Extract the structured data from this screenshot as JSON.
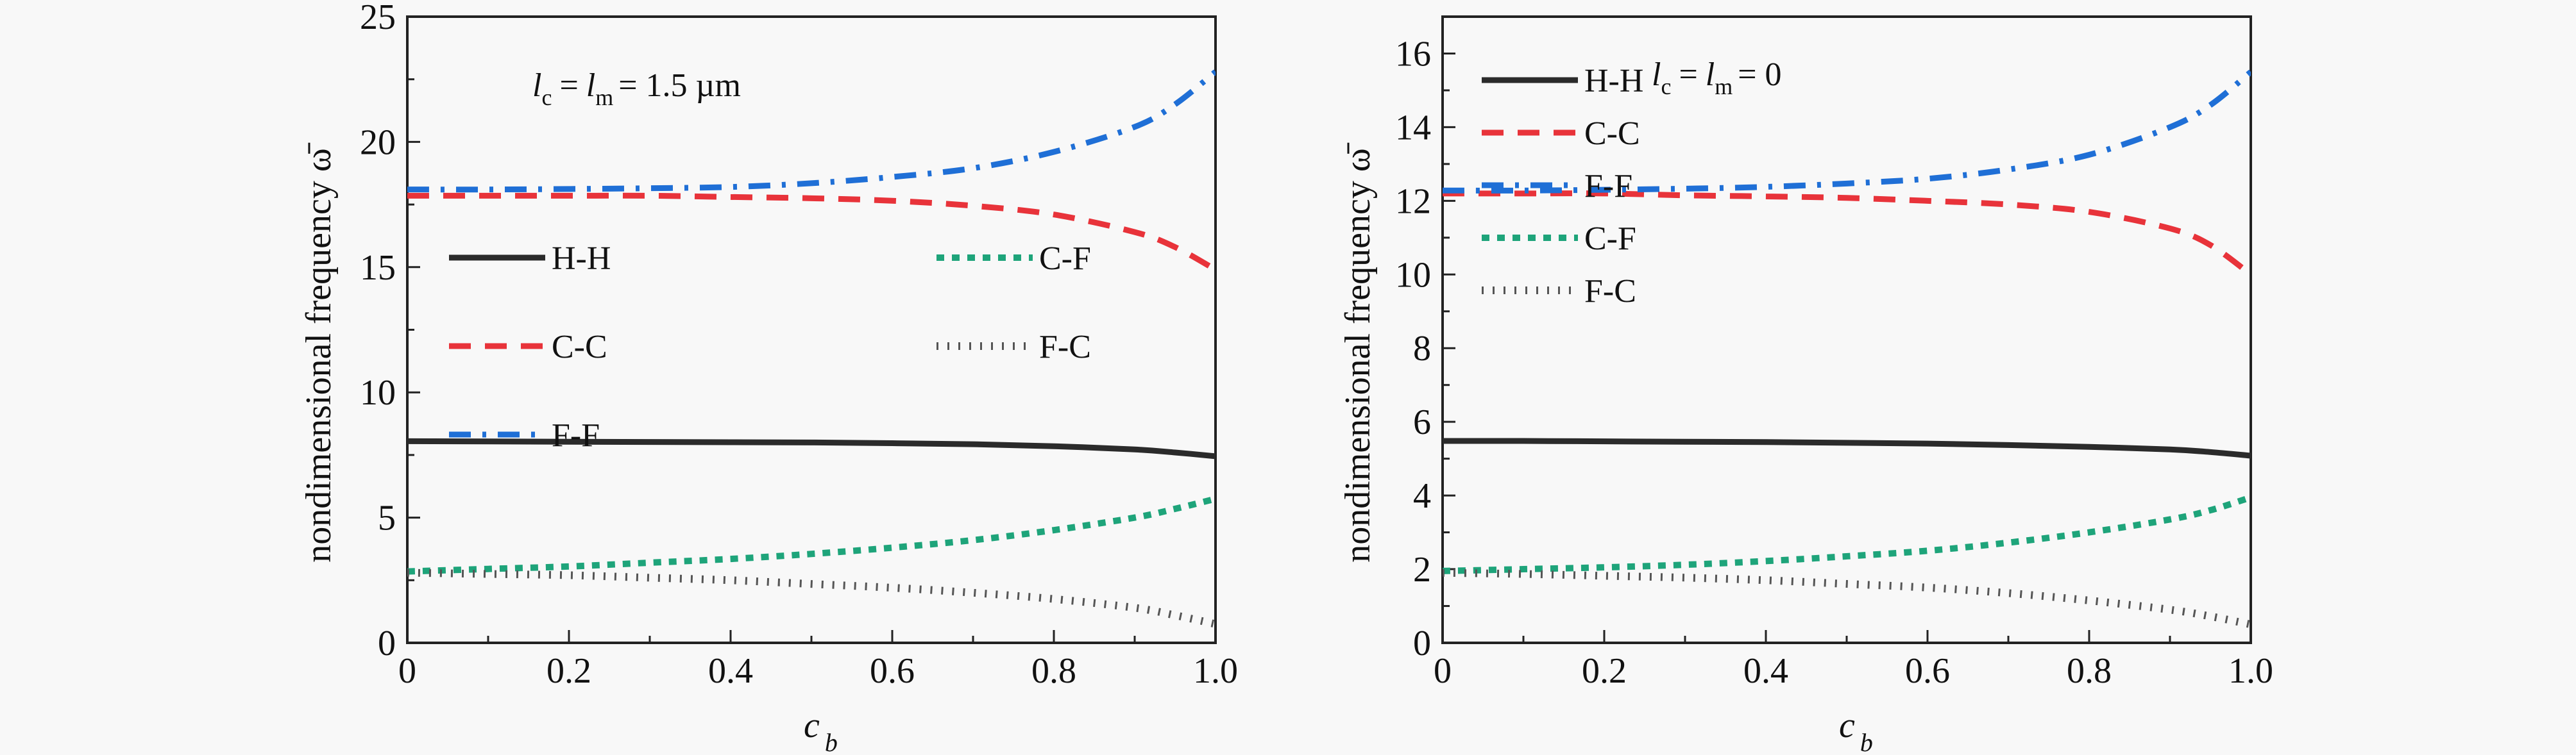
{
  "chart_data": [
    {
      "type": "line",
      "annotation": {
        "l_c": "l",
        "sub_c": "c",
        "l_m": "l",
        "sub_m": "m",
        "text": "= 1.5 µm",
        "eq": "="
      },
      "xlabel": "c",
      "xlabel_sub": "b",
      "ylabel": "nondimensional frequency ω̄",
      "xlim": [
        0,
        1.0
      ],
      "ylim": [
        0,
        25
      ],
      "xticks": [
        0,
        0.2,
        0.4,
        0.6,
        0.8,
        1.0
      ],
      "xtick_labels": [
        "0",
        "0.2",
        "0.4",
        "0.6",
        "0.8",
        "1.0"
      ],
      "yticks": [
        0,
        5,
        10,
        15,
        20,
        25
      ],
      "ytick_labels": [
        "0",
        "5",
        "10",
        "15",
        "20",
        "25"
      ],
      "legend": {
        "placement": "center-left",
        "columns": 2
      },
      "x": [
        0,
        0.1,
        0.2,
        0.3,
        0.4,
        0.5,
        0.6,
        0.7,
        0.8,
        0.9,
        0.95,
        1.0
      ],
      "series": [
        {
          "name": "H-H",
          "color": "#2b2b2b",
          "style": "solid",
          "values": [
            8.05,
            8.04,
            8.03,
            8.02,
            8.01,
            8.0,
            7.97,
            7.93,
            7.85,
            7.72,
            7.6,
            7.45
          ]
        },
        {
          "name": "C-C",
          "color": "#e8333a",
          "style": "dash",
          "values": [
            17.85,
            17.85,
            17.85,
            17.85,
            17.8,
            17.75,
            17.65,
            17.45,
            17.1,
            16.4,
            15.8,
            14.9
          ]
        },
        {
          "name": "F-F",
          "color": "#1f6fd6",
          "style": "dashdot",
          "values": [
            18.1,
            18.1,
            18.12,
            18.15,
            18.2,
            18.35,
            18.6,
            18.95,
            19.6,
            20.6,
            21.5,
            22.8
          ]
        },
        {
          "name": "C-F",
          "color": "#1ea47a",
          "style": "dot",
          "values": [
            2.85,
            2.95,
            3.05,
            3.2,
            3.35,
            3.55,
            3.8,
            4.1,
            4.5,
            5.0,
            5.35,
            5.75
          ]
        },
        {
          "name": "F-C",
          "color": "#555555",
          "style": "sparse-dot",
          "values": [
            2.8,
            2.75,
            2.7,
            2.6,
            2.5,
            2.35,
            2.2,
            2.0,
            1.75,
            1.4,
            1.1,
            0.75
          ]
        }
      ]
    },
    {
      "type": "line",
      "annotation": {
        "l_c": "l",
        "sub_c": "c",
        "l_m": "l",
        "sub_m": "m",
        "text": "= 0",
        "eq": "="
      },
      "xlabel": "c",
      "xlabel_sub": "b",
      "ylabel": "nondimensional frequency ω̄",
      "xlim": [
        0,
        1.0
      ],
      "ylim": [
        0,
        17
      ],
      "xticks": [
        0,
        0.2,
        0.4,
        0.6,
        0.8,
        1.0
      ],
      "xtick_labels": [
        "0",
        "0.2",
        "0.4",
        "0.6",
        "0.8",
        "1.0"
      ],
      "yticks": [
        0,
        2,
        4,
        6,
        8,
        10,
        12,
        14,
        16
      ],
      "ytick_labels": [
        "0",
        "2",
        "4",
        "6",
        "8",
        "10",
        "12",
        "14",
        "16"
      ],
      "legend": {
        "placement": "top-left",
        "columns": 1
      },
      "x": [
        0,
        0.1,
        0.2,
        0.3,
        0.4,
        0.5,
        0.6,
        0.7,
        0.8,
        0.9,
        0.95,
        1.0
      ],
      "series": [
        {
          "name": "H-H",
          "color": "#2b2b2b",
          "style": "solid",
          "values": [
            5.48,
            5.48,
            5.47,
            5.46,
            5.45,
            5.43,
            5.41,
            5.37,
            5.32,
            5.25,
            5.18,
            5.08
          ]
        },
        {
          "name": "C-C",
          "color": "#e8333a",
          "style": "dash",
          "values": [
            12.2,
            12.2,
            12.2,
            12.15,
            12.12,
            12.08,
            12.0,
            11.9,
            11.7,
            11.25,
            10.8,
            10.0
          ]
        },
        {
          "name": "F-F",
          "color": "#1f6fd6",
          "style": "dashdot",
          "values": [
            12.28,
            12.28,
            12.3,
            12.33,
            12.38,
            12.47,
            12.6,
            12.85,
            13.25,
            14.0,
            14.6,
            15.5
          ]
        },
        {
          "name": "C-F",
          "color": "#1ea47a",
          "style": "dot",
          "values": [
            1.95,
            2.0,
            2.05,
            2.12,
            2.22,
            2.35,
            2.5,
            2.72,
            3.0,
            3.35,
            3.6,
            3.95
          ]
        },
        {
          "name": "F-C",
          "color": "#555555",
          "style": "sparse-dot",
          "values": [
            1.9,
            1.87,
            1.82,
            1.77,
            1.7,
            1.6,
            1.5,
            1.35,
            1.15,
            0.9,
            0.72,
            0.5
          ]
        }
      ]
    }
  ]
}
